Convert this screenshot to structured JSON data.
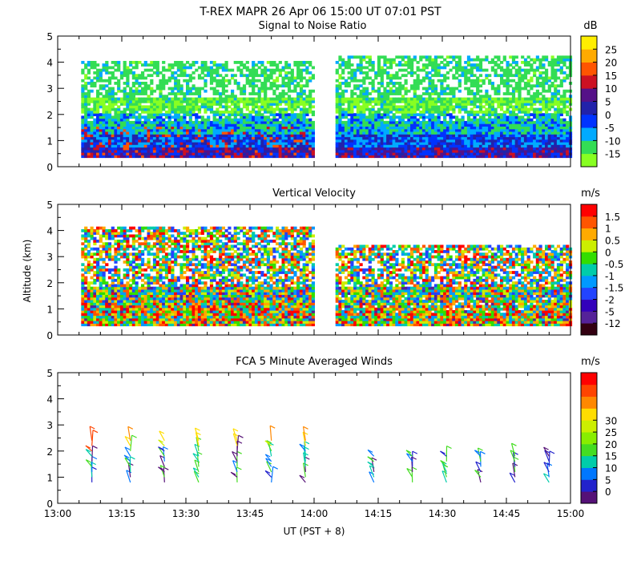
{
  "figure": {
    "title": "T-REX  MAPR 26 Apr 06  15:00 UT  07:01  PST",
    "ylabel": "Altitude (km)",
    "xlabel": "UT  (PST + 8)"
  },
  "chart_data": [
    {
      "type": "heatmap",
      "title": "Signal to Noise Ratio",
      "unit": "dB",
      "xlim": [
        0,
        120
      ],
      "ylim": [
        0,
        5
      ],
      "x_ticks_minutes": [
        0,
        15,
        30,
        45,
        60,
        75,
        90,
        105,
        120
      ],
      "y_ticks": [
        "0",
        "1",
        "2",
        "3",
        "4",
        "5"
      ],
      "data_gap_minutes": [
        60,
        65
      ],
      "colorbar": {
        "levels": [
          "-15",
          "-10",
          "-5",
          "0",
          "5",
          "10",
          "15",
          "20",
          "25"
        ],
        "colors": [
          "#88ff22",
          "#33dd55",
          "#00aaff",
          "#0033ff",
          "#2222aa",
          "#551188",
          "#cc1122",
          "#ff5500",
          "#ffaa00",
          "#ffee00"
        ]
      }
    },
    {
      "type": "heatmap",
      "title": "Vertical Velocity",
      "unit": "m/s",
      "xlim": [
        0,
        120
      ],
      "ylim": [
        0,
        5
      ],
      "x_ticks_minutes": [
        0,
        15,
        30,
        45,
        60,
        75,
        90,
        105,
        120
      ],
      "y_ticks": [
        "0",
        "1",
        "2",
        "3",
        "4",
        "5"
      ],
      "data_gap_minutes": [
        60,
        65
      ],
      "colorbar": {
        "levels": [
          "-12",
          "-5",
          "-2",
          "-1.5",
          "-1",
          "-0.5",
          "0",
          "0.5",
          "1",
          "1.5"
        ],
        "colors": [
          "#330011",
          "#552299",
          "#3300bb",
          "#2244ff",
          "#0099ff",
          "#00ccaa",
          "#33dd00",
          "#ccee00",
          "#ffaa00",
          "#ff5500",
          "#ff0000"
        ]
      }
    },
    {
      "type": "scatter",
      "title": "FCA 5 Minute Averaged Winds",
      "unit": "m/s",
      "xlim": [
        0,
        120
      ],
      "ylim": [
        0,
        5
      ],
      "x_ticks": [
        "13:00",
        "13:15",
        "13:30",
        "13:45",
        "14:00",
        "14:15",
        "14:30",
        "14:45",
        "15:00"
      ],
      "x_ticks_minutes": [
        0,
        15,
        30,
        45,
        60,
        75,
        90,
        105,
        120
      ],
      "y_ticks": [
        "0",
        "1",
        "2",
        "3",
        "4",
        "5"
      ],
      "colorbar": {
        "levels": [
          "0",
          "5",
          "10",
          "15",
          "20",
          "25",
          "30"
        ],
        "colors": [
          "#551177",
          "#2222cc",
          "#0077ff",
          "#00ccaa",
          "#44dd22",
          "#88ee00",
          "#ccee00",
          "#ffdd00",
          "#ff8800",
          "#ff4400",
          "#ff0000"
        ]
      },
      "barb_columns_minutes": [
        8,
        17,
        25,
        33,
        42,
        50,
        58,
        74,
        83,
        91,
        99,
        107,
        115
      ],
      "barb_heights_km": [
        0.8,
        1.0,
        1.2,
        1.4,
        1.6,
        1.8,
        2.0,
        2.2,
        2.4,
        2.6,
        2.8
      ]
    }
  ]
}
